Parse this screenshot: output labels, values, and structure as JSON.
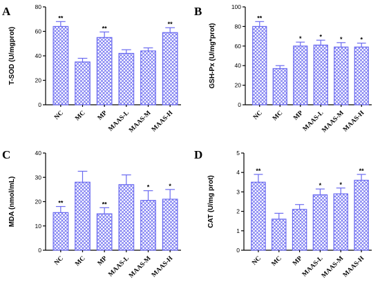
{
  "colors": {
    "bar": "#6a6af0",
    "axis": "#000000"
  },
  "chart_data": [
    {
      "type": "bar",
      "panel": "A",
      "ylabel": "T-SOD (U/mgprot)",
      "ylim": [
        0,
        80
      ],
      "yticks": [
        0,
        20,
        40,
        60,
        80
      ],
      "categories": [
        "NC",
        "MC",
        "MP",
        "MAAS-L",
        "MAAS-M",
        "MAAS-H"
      ],
      "values": [
        64,
        35,
        55,
        42,
        44,
        59
      ],
      "errors": [
        4,
        3,
        4.5,
        3,
        2.5,
        4
      ],
      "significance": [
        "**",
        "",
        "**",
        "",
        "",
        "**"
      ]
    },
    {
      "type": "bar",
      "panel": "B",
      "ylabel": "GSH-Px (U/mg*prot)",
      "ylim": [
        0,
        100
      ],
      "yticks": [
        0,
        20,
        40,
        60,
        80,
        100
      ],
      "categories": [
        "NC",
        "MC",
        "MP",
        "MAAS-L",
        "MAAS-M",
        "MAAS-H"
      ],
      "values": [
        80,
        37,
        60,
        61,
        59,
        59
      ],
      "errors": [
        5,
        3,
        4,
        5,
        4.5,
        4
      ],
      "significance": [
        "**",
        "",
        "*",
        "*",
        "*",
        "*"
      ]
    },
    {
      "type": "bar",
      "panel": "C",
      "ylabel": "MDA (nmol/mL)",
      "ylim": [
        0,
        40
      ],
      "yticks": [
        0,
        10,
        20,
        30,
        40
      ],
      "categories": [
        "NC",
        "MC",
        "MP",
        "MAAS-L",
        "MAAS-M",
        "MAAS-H"
      ],
      "values": [
        15.5,
        28,
        15,
        27,
        20.5,
        21
      ],
      "errors": [
        2.5,
        4.5,
        2.5,
        4,
        4,
        4
      ],
      "significance": [
        "**",
        "",
        "**",
        "",
        "*",
        "*"
      ]
    },
    {
      "type": "bar",
      "panel": "D",
      "ylabel": "CAT (U/mg prot)",
      "ylim": [
        0,
        5
      ],
      "yticks": [
        0,
        1,
        2,
        3,
        4,
        5
      ],
      "categories": [
        "NC",
        "MC",
        "MP",
        "MAAS-L",
        "MAAS-M",
        "MAAS-H"
      ],
      "values": [
        3.5,
        1.6,
        2.1,
        2.85,
        2.9,
        3.6
      ],
      "errors": [
        0.4,
        0.3,
        0.25,
        0.3,
        0.3,
        0.3
      ],
      "significance": [
        "**",
        "",
        "",
        "*",
        "*",
        "**"
      ]
    }
  ]
}
